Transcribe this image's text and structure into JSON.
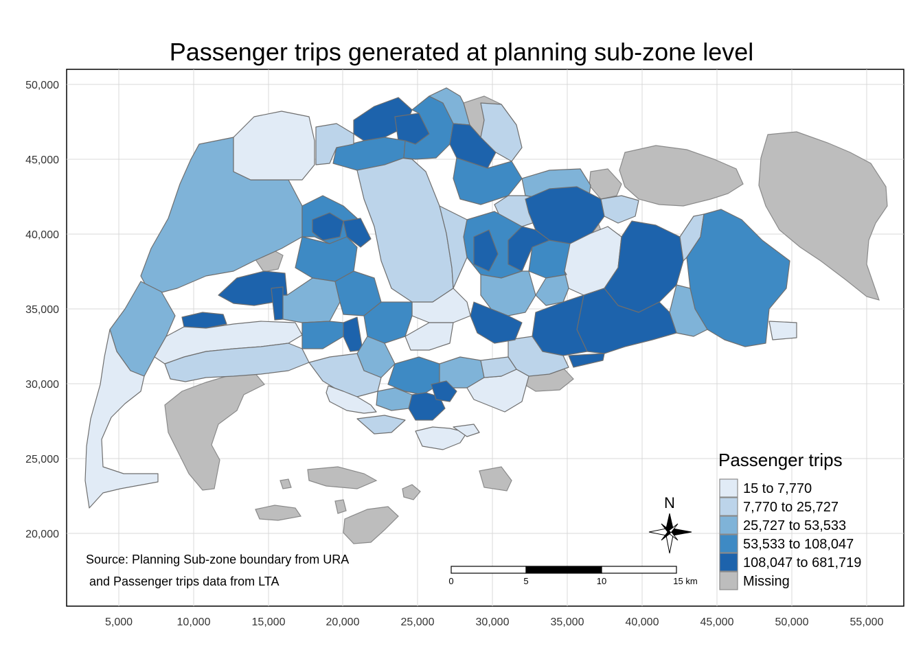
{
  "title": "Passenger trips generated at planning sub-zone level",
  "colors": {
    "class1": "#e1ebf6",
    "class2": "#bcd4ea",
    "class3": "#7fb3d8",
    "class4": "#3e8ac4",
    "class5": "#1d63ac",
    "missing": "#bdbdbd"
  },
  "axes": {
    "x_ticks": [
      "5,000",
      "10,000",
      "15,000",
      "20,000",
      "25,000",
      "30,000",
      "35,000",
      "40,000",
      "45,000",
      "50,000",
      "55,000"
    ],
    "y_ticks": [
      "50,000",
      "45,000",
      "40,000",
      "35,000",
      "30,000",
      "25,000",
      "20,000"
    ]
  },
  "legend": {
    "title": "Passenger trips",
    "items": [
      {
        "label": "15 to 7,770",
        "class": "class1"
      },
      {
        "label": "7,770 to 25,727",
        "class": "class2"
      },
      {
        "label": "25,727 to 53,533",
        "class": "class3"
      },
      {
        "label": "53,533 to 108,047",
        "class": "class4"
      },
      {
        "label": "108,047 to 681,719",
        "class": "class5"
      },
      {
        "label": "Missing",
        "class": "missing"
      }
    ]
  },
  "scale_bar": {
    "labels": [
      "0",
      "5",
      "10",
      "15 km"
    ]
  },
  "north_arrow": {
    "label": "N"
  },
  "source": {
    "line1": "Source: Planning Sub-zone boundary from URA",
    "line2": " and Passenger trips data from LTA"
  }
}
